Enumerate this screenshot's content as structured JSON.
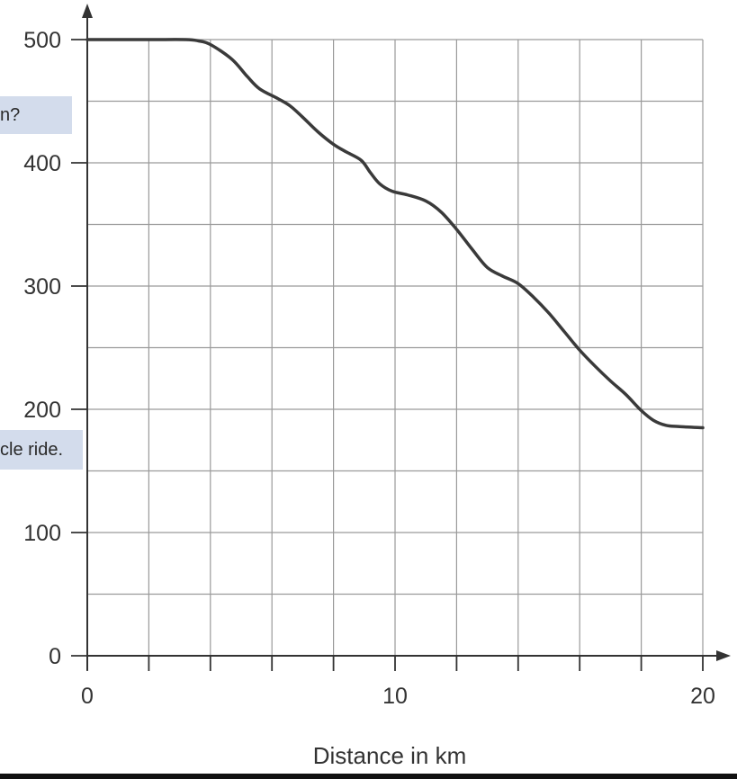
{
  "callouts": {
    "first": "n?",
    "second": "cle ride."
  },
  "chart_data": {
    "type": "line",
    "xlabel": "Distance in km",
    "ylabel": "",
    "xlim": [
      0,
      20
    ],
    "ylim": [
      0,
      500
    ],
    "x_major_ticks": [
      0,
      10,
      20
    ],
    "x_minor_step": 2,
    "y_major_ticks": [
      0,
      100,
      200,
      300,
      400,
      500
    ],
    "y_grid_step": 50,
    "grid": true,
    "colors": {
      "line": "#3a3a3a",
      "grid": "#9a9a9a",
      "axis": "#333333",
      "callout": "#d3dcec"
    },
    "series": [
      {
        "x": [
          0,
          2,
          3.2,
          3.6,
          4,
          4.7,
          5.2,
          5.6,
          6.2,
          6.6,
          7,
          7.5,
          8,
          8.4,
          8.9,
          9.2,
          9.5,
          9.9,
          10.4,
          11,
          11.5,
          12,
          12.5,
          13,
          13.5,
          14,
          14.5,
          15,
          15.5,
          16,
          16.5,
          17,
          17.5,
          18,
          18.4,
          18.8,
          19.2,
          20
        ],
        "y": [
          500,
          500,
          500,
          499,
          496,
          484,
          470,
          460,
          452,
          446,
          437,
          425,
          415,
          409,
          402,
          392,
          383,
          377,
          374,
          369,
          360,
          346,
          330,
          315,
          308,
          302,
          291,
          278,
          263,
          248,
          235,
          223,
          212,
          199,
          191,
          187,
          186,
          185
        ]
      }
    ]
  }
}
